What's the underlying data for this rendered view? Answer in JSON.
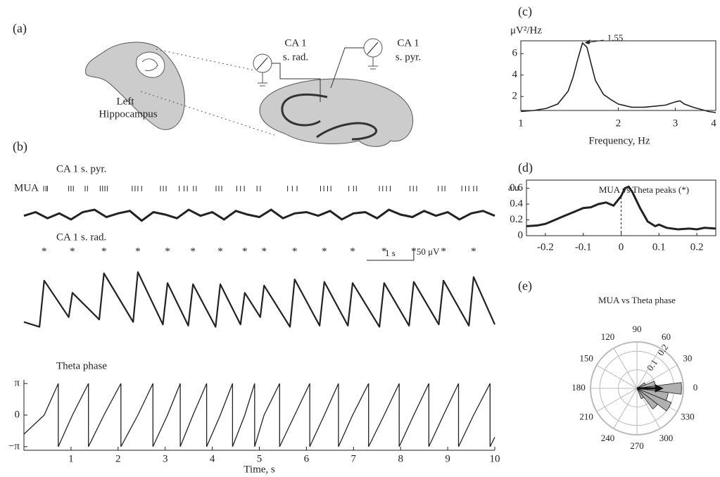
{
  "panels": {
    "a": "(a)",
    "b": "(b)",
    "c": "(c)",
    "d": "(d)",
    "e": "(e)"
  },
  "diagram": {
    "left": "Left",
    "hippocampus": "Hippocampus",
    "rad_name": "CA 1",
    "rad_layer": "s. rad.",
    "pyr_name": "CA 1",
    "pyr_layer": "s. pyr."
  },
  "chart_data": [
    {
      "type": "raster_trace",
      "title": "CA 1 s. pyr.",
      "label": "MUA",
      "color": "#222222",
      "events": [
        0.42,
        0.47,
        0.5,
        0.95,
        1.0,
        1.05,
        1.3,
        1.35,
        1.62,
        1.67,
        1.72,
        1.77,
        2.3,
        2.36,
        2.42,
        2.5,
        2.9,
        2.96,
        3.02,
        3.3,
        3.4,
        3.47,
        3.6,
        3.66,
        4.08,
        4.14,
        4.2,
        4.52,
        4.6,
        4.68,
        4.95,
        5.02,
        5.6,
        5.7,
        5.8,
        6.3,
        6.37,
        6.45,
        6.52,
        6.9,
        7.0,
        7.06,
        7.55,
        7.62,
        7.7,
        7.78,
        8.2,
        8.27,
        8.34,
        8.8,
        8.88,
        8.94,
        9.3,
        9.38,
        9.45,
        9.55,
        9.62,
        10.1
      ],
      "x": [
        0,
        0.25,
        0.5,
        0.75,
        1,
        1.25,
        1.5,
        1.75,
        2,
        2.25,
        2.5,
        2.75,
        3,
        3.25,
        3.5,
        3.75,
        4,
        4.25,
        4.5,
        4.75,
        5,
        5.25,
        5.5,
        5.75,
        6,
        6.25,
        6.5,
        6.75,
        7,
        7.25,
        7.5,
        7.75,
        8,
        8.25,
        8.5,
        8.75,
        9,
        9.25,
        9.5,
        9.75,
        10
      ],
      "values": [
        -5,
        10,
        -15,
        5,
        -20,
        10,
        20,
        -10,
        5,
        15,
        -25,
        10,
        0,
        -15,
        20,
        -5,
        10,
        -20,
        15,
        0,
        -10,
        20,
        -15,
        5,
        10,
        -5,
        15,
        -20,
        5,
        10,
        -15,
        20,
        0,
        -10,
        15,
        -5,
        10,
        -20,
        5,
        15,
        -5
      ],
      "ylim": [
        -130,
        130
      ],
      "xlim": [
        0,
        10
      ]
    },
    {
      "type": "trace",
      "title": "CA 1 s. rad.",
      "marker": "*",
      "color": "#222222",
      "peaks": [
        0.43,
        1.03,
        1.7,
        2.42,
        3.05,
        3.59,
        4.17,
        4.69,
        5.1,
        5.75,
        6.38,
        6.98,
        7.65,
        8.28,
        8.91,
        9.55
      ],
      "x": [
        0,
        0.33,
        0.43,
        0.95,
        1.03,
        1.6,
        1.7,
        2.32,
        2.42,
        2.95,
        3.05,
        3.49,
        3.59,
        4.07,
        4.17,
        4.6,
        4.69,
        5.02,
        5.1,
        5.65,
        5.75,
        6.28,
        6.38,
        6.88,
        6.98,
        7.55,
        7.65,
        8.18,
        8.28,
        8.81,
        8.91,
        9.45,
        9.55,
        10
      ],
      "values": [
        -80,
        -100,
        90,
        -60,
        40,
        -70,
        120,
        -80,
        125,
        -90,
        80,
        -95,
        75,
        -100,
        75,
        -90,
        40,
        -60,
        70,
        -100,
        95,
        -95,
        85,
        -95,
        80,
        -100,
        80,
        -95,
        85,
        -90,
        90,
        -95,
        105,
        -90
      ],
      "ylim": [
        -130,
        130
      ],
      "xlim": [
        0,
        10
      ],
      "scale_x": {
        "value": 1,
        "label": "1 s"
      },
      "scale_y": {
        "value": 50,
        "label": "50 μV"
      }
    },
    {
      "type": "line",
      "title": "Theta phase",
      "xlabel": "Time, s",
      "color": "#222222",
      "x": [
        0,
        0.43,
        0.73,
        0.73,
        1.03,
        1.37,
        1.37,
        1.7,
        2.06,
        2.06,
        2.42,
        2.74,
        2.74,
        3.05,
        3.32,
        3.32,
        3.59,
        3.88,
        3.88,
        4.17,
        4.43,
        4.43,
        4.69,
        4.9,
        4.9,
        5.1,
        5.43,
        5.43,
        5.75,
        6.07,
        6.07,
        6.38,
        6.68,
        6.68,
        6.98,
        7.32,
        7.32,
        7.65,
        7.97,
        7.97,
        8.28,
        8.6,
        8.6,
        8.91,
        9.23,
        9.23,
        9.55,
        9.9,
        9.9,
        10
      ],
      "values": [
        -1.9,
        0,
        3.14,
        -3.14,
        0,
        3.14,
        -3.14,
        0,
        3.14,
        -3.14,
        0,
        3.14,
        -3.14,
        0,
        3.14,
        -3.14,
        0,
        3.14,
        -3.14,
        0,
        3.14,
        -3.14,
        0,
        3.14,
        -3.14,
        0,
        3.14,
        -3.14,
        0,
        3.14,
        -3.14,
        0,
        3.14,
        -3.14,
        0,
        3.14,
        -3.14,
        0,
        3.14,
        -3.14,
        0,
        3.14,
        -3.14,
        0,
        3.14,
        -3.14,
        0,
        3.14,
        -3.14,
        -2.2
      ],
      "xlim": [
        0,
        10
      ],
      "xticks": [
        1,
        2,
        3,
        4,
        5,
        6,
        7,
        8,
        9,
        10
      ],
      "ylim": [
        -3.5,
        3.5
      ],
      "yticks": [
        {
          "value": -3.14,
          "label": "−π"
        },
        0,
        {
          "value": 3.14,
          "label": "π"
        }
      ]
    },
    {
      "type": "spectrum",
      "ylabel": "μV²/Hz",
      "xlabel": "Frequency, Hz",
      "color": "#222222",
      "xscale": "log",
      "x": [
        1,
        1.1,
        1.2,
        1.3,
        1.4,
        1.45,
        1.5,
        1.55,
        1.6,
        1.65,
        1.7,
        1.8,
        1.9,
        2,
        2.2,
        2.4,
        2.6,
        2.8,
        3,
        3.1,
        3.2,
        3.4,
        3.6,
        3.8,
        4
      ],
      "values": [
        0.6,
        0.7,
        0.9,
        1.3,
        2.5,
        3.8,
        5.5,
        7.0,
        6.6,
        5.0,
        3.5,
        2.2,
        1.7,
        1.3,
        1.0,
        1.0,
        1.1,
        1.2,
        1.5,
        1.6,
        1.3,
        1.0,
        0.8,
        0.6,
        0.5
      ],
      "xlim": [
        1,
        4
      ],
      "xticks": [
        1,
        2,
        3,
        4
      ],
      "ylim": [
        0.7,
        7.2
      ],
      "yticks": [
        2,
        4,
        6
      ],
      "annotation": {
        "text": "1.55",
        "x": 1.55,
        "y": 7.0
      }
    },
    {
      "type": "line",
      "title": "MUA vs Theta peaks (*)",
      "ylabel": "a.u.",
      "color": "#222222",
      "x": [
        -0.25,
        -0.22,
        -0.2,
        -0.18,
        -0.15,
        -0.12,
        -0.1,
        -0.08,
        -0.06,
        -0.04,
        -0.02,
        0,
        0.01,
        0.02,
        0.03,
        0.05,
        0.07,
        0.09,
        0.1,
        0.12,
        0.15,
        0.18,
        0.2,
        0.22,
        0.25
      ],
      "values": [
        0.12,
        0.13,
        0.15,
        0.19,
        0.25,
        0.31,
        0.35,
        0.36,
        0.4,
        0.42,
        0.38,
        0.5,
        0.6,
        0.62,
        0.55,
        0.35,
        0.18,
        0.12,
        0.14,
        0.1,
        0.08,
        0.09,
        0.08,
        0.1,
        0.09
      ],
      "xlim": [
        -0.25,
        0.25
      ],
      "xticks": [
        -0.2,
        -0.1,
        0,
        0.1,
        0.2
      ],
      "ylim": [
        0,
        0.65
      ],
      "yticks": [
        0,
        0.2,
        0.4,
        0.6
      ],
      "marker_x": 0
    },
    {
      "type": "polar",
      "title": "MUA vs Theta phase",
      "color": "#b0b0b0",
      "angles": [
        15,
        30,
        300,
        315,
        330,
        345,
        0
      ],
      "values": [
        0.1,
        0.05,
        0.06,
        0.14,
        0.2,
        0.17,
        0.24
      ],
      "bin_width": 15,
      "mean_vector": {
        "angle": 0,
        "length": 0.12
      },
      "rlim": [
        0,
        0.25
      ],
      "rticks": [
        0.1,
        0.2
      ],
      "thetaticks": [
        0,
        30,
        60,
        90,
        120,
        150,
        180,
        210,
        240,
        270,
        300,
        330
      ]
    }
  ]
}
